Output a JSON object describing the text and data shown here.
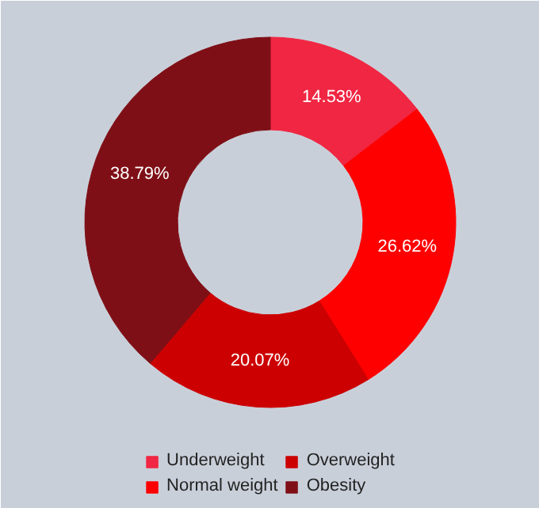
{
  "chart_data": {
    "type": "donut",
    "categories": [
      "Underweight",
      "Normal weight",
      "Overweight",
      "Obesity"
    ],
    "values": [
      14.53,
      26.62,
      20.07,
      38.79
    ],
    "colors": [
      "#f02642",
      "#ff0000",
      "#cc0000",
      "#7f0f16"
    ],
    "value_labels": [
      "14.53%",
      "26.62%",
      "20.07%",
      "38.79%"
    ],
    "legend": "bottom"
  }
}
